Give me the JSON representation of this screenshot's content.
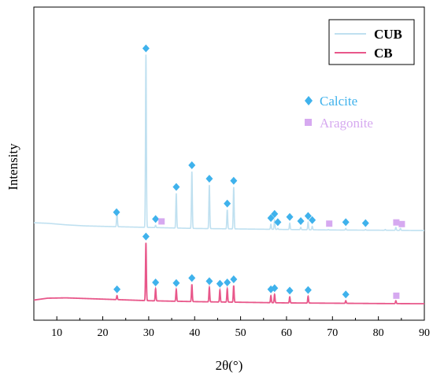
{
  "chart_data": {
    "type": "line",
    "title": "",
    "xlabel": "2θ(°)",
    "ylabel": "Intensity",
    "xlim": [
      5,
      90
    ],
    "xticks": [
      10,
      20,
      30,
      40,
      50,
      60,
      70,
      80,
      90
    ],
    "y_ticks_shown": false,
    "grid": false,
    "legend_position": "top-right",
    "series": [
      {
        "name": "CUB",
        "color": "#bfe0f0",
        "baseline": 0.4,
        "background": [
          [
            5,
            0.475
          ],
          [
            8,
            0.47
          ],
          [
            12,
            0.455
          ],
          [
            16,
            0.445
          ],
          [
            22,
            0.438
          ],
          [
            30,
            0.43
          ],
          [
            40,
            0.42
          ],
          [
            50,
            0.415
          ],
          [
            60,
            0.41
          ],
          [
            70,
            0.405
          ],
          [
            80,
            0.403
          ],
          [
            90,
            0.4
          ]
        ],
        "peaks": [
          [
            23.1,
            0.58
          ],
          [
            29.4,
            2.1
          ],
          [
            31.5,
            0.45
          ],
          [
            36.0,
            0.76
          ],
          [
            39.4,
            0.97
          ],
          [
            43.2,
            0.84
          ],
          [
            47.1,
            0.6
          ],
          [
            48.5,
            0.82
          ],
          [
            56.6,
            0.46
          ],
          [
            57.4,
            0.5
          ],
          [
            58.1,
            0.42
          ],
          [
            60.7,
            0.47
          ],
          [
            63.1,
            0.43
          ],
          [
            64.7,
            0.48
          ],
          [
            65.6,
            0.44
          ],
          [
            69.1,
            0.41
          ],
          [
            72.9,
            0.42
          ],
          [
            77.2,
            0.41
          ],
          [
            81.5,
            0.41
          ],
          [
            83.8,
            0.43
          ],
          [
            84.8,
            0.42
          ]
        ]
      },
      {
        "name": "CB",
        "color": "#e8578a",
        "baseline": 0.0,
        "background": [
          [
            5,
            0.07
          ],
          [
            8,
            0.1
          ],
          [
            12,
            0.105
          ],
          [
            16,
            0.095
          ],
          [
            22,
            0.08
          ],
          [
            30,
            0.06
          ],
          [
            40,
            0.045
          ],
          [
            50,
            0.035
          ],
          [
            60,
            0.025
          ],
          [
            70,
            0.02
          ],
          [
            80,
            0.015
          ],
          [
            90,
            0.012
          ]
        ],
        "peaks": [
          [
            23.1,
            0.14
          ],
          [
            29.4,
            0.98
          ],
          [
            31.5,
            0.25
          ],
          [
            36.0,
            0.24
          ],
          [
            39.4,
            0.32
          ],
          [
            43.2,
            0.27
          ],
          [
            45.5,
            0.23
          ],
          [
            47.1,
            0.25
          ],
          [
            48.5,
            0.3
          ],
          [
            56.6,
            0.14
          ],
          [
            57.4,
            0.16
          ],
          [
            60.7,
            0.12
          ],
          [
            64.7,
            0.13
          ],
          [
            72.9,
            0.06
          ],
          [
            83.8,
            0.06
          ]
        ]
      }
    ],
    "markers": [
      {
        "name": "Calcite",
        "shape": "diamond",
        "color": "#3fb2ec",
        "points": [
          {
            "s": 0,
            "x": 23.0
          },
          {
            "s": 0,
            "x": 29.4
          },
          {
            "s": 0,
            "x": 31.5
          },
          {
            "s": 0,
            "x": 36.0
          },
          {
            "s": 0,
            "x": 39.4
          },
          {
            "s": 0,
            "x": 43.2
          },
          {
            "s": 0,
            "x": 47.1
          },
          {
            "s": 0,
            "x": 48.5
          },
          {
            "s": 0,
            "x": 56.6
          },
          {
            "s": 0,
            "x": 57.4
          },
          {
            "s": 0,
            "x": 58.1
          },
          {
            "s": 0,
            "x": 60.7
          },
          {
            "s": 0,
            "x": 63.1
          },
          {
            "s": 0,
            "x": 64.7
          },
          {
            "s": 0,
            "x": 65.6
          },
          {
            "s": 0,
            "x": 72.9
          },
          {
            "s": 0,
            "x": 77.2
          },
          {
            "s": 1,
            "x": 23.1
          },
          {
            "s": 1,
            "x": 29.4
          },
          {
            "s": 1,
            "x": 31.5
          },
          {
            "s": 1,
            "x": 36.0
          },
          {
            "s": 1,
            "x": 39.4
          },
          {
            "s": 1,
            "x": 43.2
          },
          {
            "s": 1,
            "x": 45.5
          },
          {
            "s": 1,
            "x": 47.1
          },
          {
            "s": 1,
            "x": 48.5
          },
          {
            "s": 1,
            "x": 56.6
          },
          {
            "s": 1,
            "x": 57.4
          },
          {
            "s": 1,
            "x": 60.7
          },
          {
            "s": 1,
            "x": 64.7
          },
          {
            "s": 1,
            "x": 72.9
          }
        ]
      },
      {
        "name": "Aragonite",
        "shape": "square",
        "color": "#d6a9f0",
        "points": [
          {
            "s": 0,
            "x": 32.8
          },
          {
            "s": 0,
            "x": 69.3
          },
          {
            "s": 0,
            "x": 83.9
          },
          {
            "s": 0,
            "x": 85.1
          },
          {
            "s": 1,
            "x": 83.9
          }
        ]
      }
    ]
  }
}
